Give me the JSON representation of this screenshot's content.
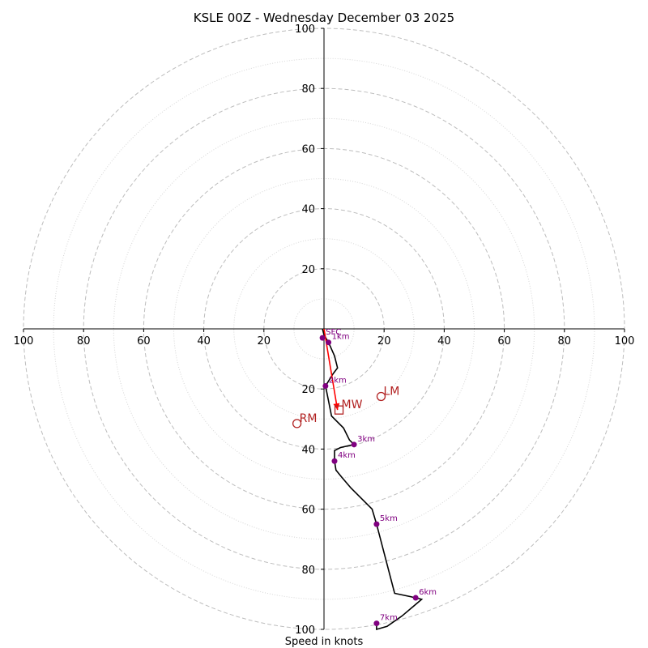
{
  "chart_data": {
    "type": "hodograph",
    "title": "KSLE 00Z - Wednesday December 03 2025",
    "xlabel": "Speed in knots",
    "max_speed": 100,
    "ring_major_step": 20,
    "ring_minor_step": 10,
    "ticks": [
      20,
      40,
      60,
      80,
      100
    ],
    "tick_labels": [
      "20",
      "40",
      "60",
      "80",
      "100"
    ],
    "profile": [
      {
        "u": -0.5,
        "v": 0
      },
      {
        "u": 0,
        "v": -2
      },
      {
        "u": 1.5,
        "v": -4.5
      },
      {
        "u": 3.5,
        "v": -9
      },
      {
        "u": 4.5,
        "v": -13
      },
      {
        "u": 3,
        "v": -15
      },
      {
        "u": 0.5,
        "v": -19
      },
      {
        "u": 1.5,
        "v": -24
      },
      {
        "u": 2.5,
        "v": -29
      },
      {
        "u": 6.5,
        "v": -33
      },
      {
        "u": 8.5,
        "v": -37
      },
      {
        "u": 10,
        "v": -38.5
      },
      {
        "u": 5.5,
        "v": -39.5
      },
      {
        "u": 3.5,
        "v": -40.5
      },
      {
        "u": 3.5,
        "v": -44
      },
      {
        "u": 4,
        "v": -47
      },
      {
        "u": 6,
        "v": -49.5
      },
      {
        "u": 9,
        "v": -53
      },
      {
        "u": 16,
        "v": -60
      },
      {
        "u": 17.5,
        "v": -65
      },
      {
        "u": 23.5,
        "v": -88
      },
      {
        "u": 30.5,
        "v": -89.5
      },
      {
        "u": 32.5,
        "v": -90
      },
      {
        "u": 26,
        "v": -95.5
      },
      {
        "u": 21,
        "v": -99
      },
      {
        "u": 17.5,
        "v": -100
      },
      {
        "u": 17.5,
        "v": -98
      }
    ],
    "height_markers": [
      {
        "label": "SFC",
        "u": -0.5,
        "v": -3
      },
      {
        "label": "1km",
        "u": 1.5,
        "v": -4.5
      },
      {
        "label": "2km",
        "u": 0.5,
        "v": -19
      },
      {
        "label": "3km",
        "u": 10,
        "v": -38.5
      },
      {
        "label": "4km",
        "u": 3.5,
        "v": -44
      },
      {
        "label": "5km",
        "u": 17.5,
        "v": -65
      },
      {
        "label": "6km",
        "u": 30.5,
        "v": -89.5
      },
      {
        "label": "7km",
        "u": 17.5,
        "v": -98
      }
    ],
    "storm_motion": {
      "LM": {
        "label": "LM",
        "u": 19,
        "v": -22.5
      },
      "RM": {
        "label": "RM",
        "u": -9,
        "v": -31.5
      },
      "MW": {
        "label": "MW",
        "u": 5,
        "v": -27
      }
    },
    "shear_vector": {
      "u0": 0,
      "v0": 0,
      "u1": 4.5,
      "v1": -27
    },
    "colors": {
      "profile": "#000000",
      "markers": "#800080",
      "storm": "#b22222",
      "shear": "#ff0000"
    }
  }
}
